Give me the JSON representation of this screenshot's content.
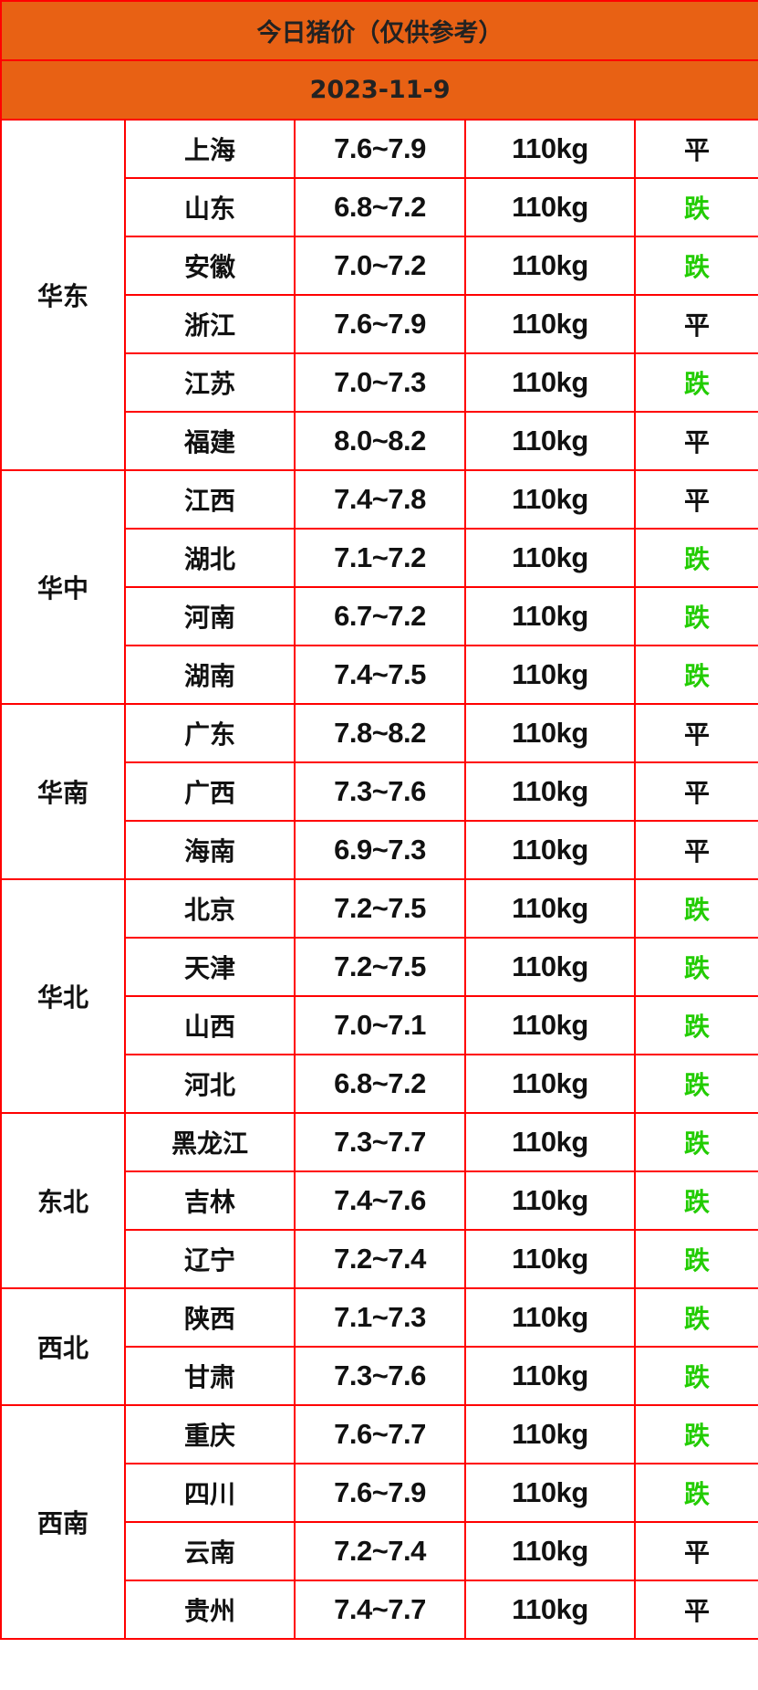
{
  "title": "今日猪价（仅供参考）",
  "date": "2023-11-9",
  "colors": {
    "header_bg": "#e86114",
    "border": "#ff0000",
    "fall": "#22cc00",
    "flat": "#111111"
  },
  "regions": [
    {
      "name": "华东",
      "rows": [
        [
          "上海",
          "7.6~7.9",
          "110kg",
          "平"
        ],
        [
          "山东",
          "6.8~7.2",
          "110kg",
          "跌"
        ],
        [
          "安徽",
          "7.0~7.2",
          "110kg",
          "跌"
        ],
        [
          "浙江",
          "7.6~7.9",
          "110kg",
          "平"
        ],
        [
          "江苏",
          "7.0~7.3",
          "110kg",
          "跌"
        ],
        [
          "福建",
          "8.0~8.2",
          "110kg",
          "平"
        ]
      ]
    },
    {
      "name": "华中",
      "rows": [
        [
          "江西",
          "7.4~7.8",
          "110kg",
          "平"
        ],
        [
          "湖北",
          "7.1~7.2",
          "110kg",
          "跌"
        ],
        [
          "河南",
          "6.7~7.2",
          "110kg",
          "跌"
        ],
        [
          "湖南",
          "7.4~7.5",
          "110kg",
          "跌"
        ]
      ]
    },
    {
      "name": "华南",
      "rows": [
        [
          "广东",
          "7.8~8.2",
          "110kg",
          "平"
        ],
        [
          "广西",
          "7.3~7.6",
          "110kg",
          "平"
        ],
        [
          "海南",
          "6.9~7.3",
          "110kg",
          "平"
        ]
      ]
    },
    {
      "name": "华北",
      "rows": [
        [
          "北京",
          "7.2~7.5",
          "110kg",
          "跌"
        ],
        [
          "天津",
          "7.2~7.5",
          "110kg",
          "跌"
        ],
        [
          "山西",
          "7.0~7.1",
          "110kg",
          "跌"
        ],
        [
          "河北",
          "6.8~7.2",
          "110kg",
          "跌"
        ]
      ]
    },
    {
      "name": "东北",
      "rows": [
        [
          "黑龙江",
          "7.3~7.7",
          "110kg",
          "跌"
        ],
        [
          "吉林",
          "7.4~7.6",
          "110kg",
          "跌"
        ],
        [
          "辽宁",
          "7.2~7.4",
          "110kg",
          "跌"
        ]
      ]
    },
    {
      "name": "西北",
      "rows": [
        [
          "陕西",
          "7.1~7.3",
          "110kg",
          "跌"
        ],
        [
          "甘肃",
          "7.3~7.6",
          "110kg",
          "跌"
        ]
      ]
    },
    {
      "name": "西南",
      "rows": [
        [
          "重庆",
          "7.6~7.7",
          "110kg",
          "跌"
        ],
        [
          "四川",
          "7.6~7.9",
          "110kg",
          "跌"
        ],
        [
          "云南",
          "7.2~7.4",
          "110kg",
          "平"
        ],
        [
          "贵州",
          "7.4~7.7",
          "110kg",
          "平"
        ]
      ]
    }
  ]
}
